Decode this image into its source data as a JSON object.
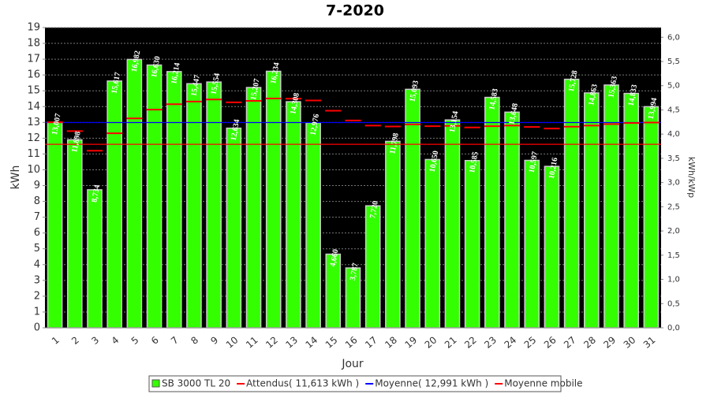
{
  "chart_data": {
    "type": "bar",
    "title": "7-2020",
    "x_label": "Jour",
    "y_label": "kWh",
    "y2_label": "kWh/kWp",
    "categories": [
      "1",
      "2",
      "3",
      "4",
      "5",
      "6",
      "7",
      "8",
      "9",
      "10",
      "11",
      "12",
      "13",
      "14",
      "15",
      "16",
      "17",
      "18",
      "19",
      "20",
      "21",
      "22",
      "23",
      "24",
      "25",
      "26",
      "27",
      "28",
      "29",
      "30",
      "31"
    ],
    "series": [
      {
        "name": "SB 3000 TL 20",
        "color": "#33ff00",
        "values": [
          13.007,
          11.898,
          8.734,
          15.617,
          16.982,
          16.63,
          16.214,
          15.447,
          15.554,
          12.634,
          15.207,
          16.234,
          14.308,
          12.976,
          4.66,
          3.787,
          7.72,
          11.798,
          15.093,
          10.65,
          13.154,
          10.585,
          14.583,
          13.648,
          10.597,
          10.216,
          15.728,
          14.863,
          15.363,
          14.833,
          13.994
        ],
        "value_labels": [
          "13,007",
          "11,898",
          "8,734",
          "15,617",
          "16,982",
          "16,630",
          "16,214",
          "15,447",
          "15,554",
          "12,634",
          "15,207",
          "16,234",
          "14,308",
          "12,976",
          "4,660",
          "3,787",
          "7,720",
          "11,798",
          "15,093",
          "10,650",
          "13,154",
          "10,585",
          "14,583",
          "13,648",
          "10,597",
          "10,216",
          "15,728",
          "14,863",
          "15,363",
          "14,833",
          "13,994"
        ]
      },
      {
        "name": "Moyenne mobile",
        "color": "#ff0000",
        "values": [
          13.01,
          12.45,
          11.21,
          12.31,
          13.25,
          13.81,
          14.15,
          14.32,
          14.45,
          14.27,
          14.36,
          14.51,
          14.5,
          14.39,
          13.74,
          13.12,
          12.8,
          12.74,
          12.87,
          12.76,
          12.78,
          12.68,
          12.76,
          12.8,
          12.71,
          12.61,
          12.73,
          12.8,
          12.89,
          12.96,
          12.99
        ]
      }
    ],
    "reference_lines": [
      {
        "name": "Attendus( 11,613 kWh )",
        "color": "#ff0000",
        "value": 11.613
      },
      {
        "name": "Moyenne( 12,991 kWh )",
        "color": "#0000ff",
        "value": 12.991
      }
    ],
    "ylim": [
      0,
      19
    ],
    "yticks": [
      0,
      1,
      2,
      3,
      4,
      5,
      6,
      7,
      8,
      9,
      10,
      11,
      12,
      13,
      14,
      15,
      16,
      17,
      18,
      19
    ],
    "y2lim": [
      0,
      6.2
    ],
    "y2ticks": [
      {
        "value": 0,
        "label": "0,0"
      },
      {
        "value": 0.5,
        "label": "0,5"
      },
      {
        "value": 1,
        "label": "1,0"
      },
      {
        "value": 1.5,
        "label": "1,5"
      },
      {
        "value": 2,
        "label": "2,0"
      },
      {
        "value": 2.5,
        "label": "2,5"
      },
      {
        "value": 3,
        "label": "3,0"
      },
      {
        "value": 3.5,
        "label": "3,5"
      },
      {
        "value": 4,
        "label": "4,0"
      },
      {
        "value": 4.5,
        "label": "4,5"
      },
      {
        "value": 5,
        "label": "5,0"
      },
      {
        "value": 5.5,
        "label": "5,5"
      },
      {
        "value": 6,
        "label": "6,0"
      }
    ],
    "grid": true
  }
}
